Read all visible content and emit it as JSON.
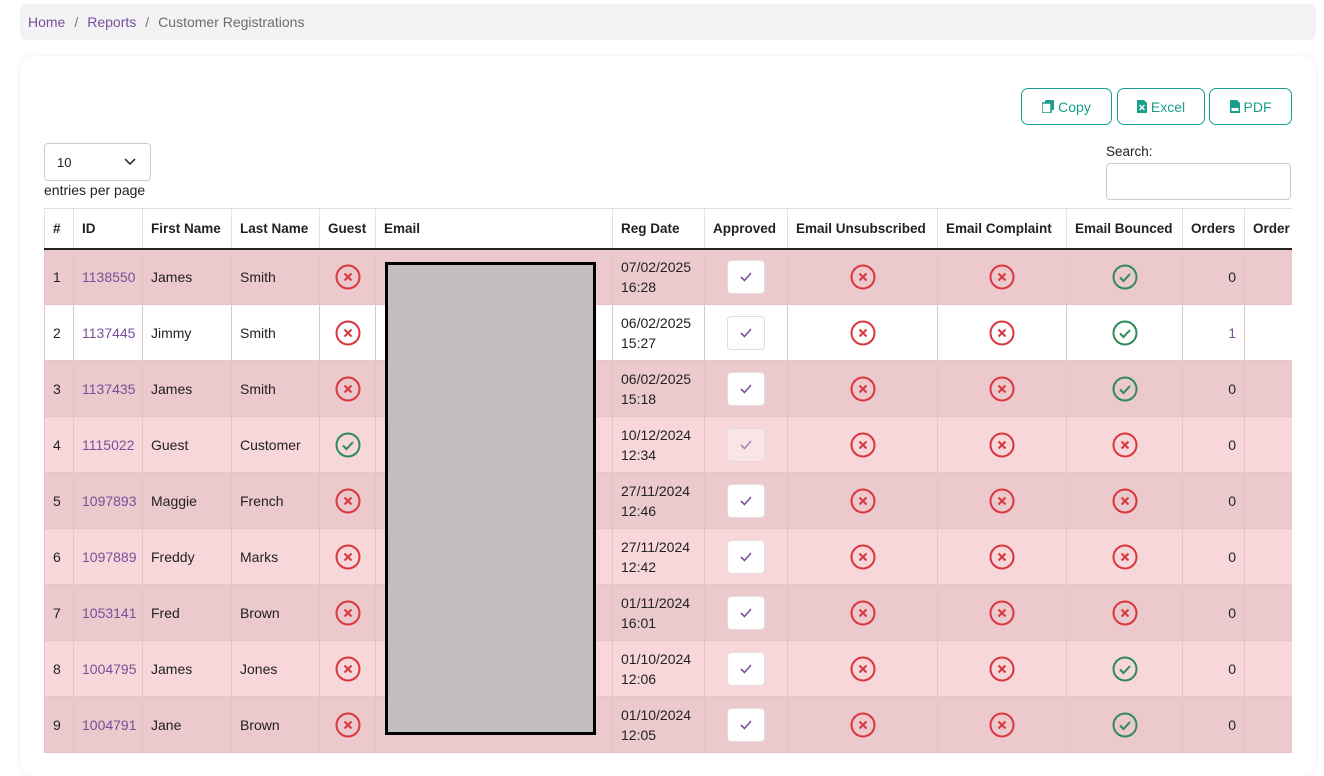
{
  "breadcrumb": [
    "Home",
    "Reports",
    "Customer Registrations"
  ],
  "buttons": [
    "Copy",
    "Excel",
    "PDF"
  ],
  "page_length": "10",
  "entries_label": "entries per page",
  "search_label": "Search:",
  "table": {
    "headers": [
      "#",
      "ID",
      "First Name",
      "Last Name",
      "Guest",
      "Email",
      "Reg Date",
      "Approved",
      "Email Unsubscribed",
      "Email Complaint",
      "Email Bounced",
      "Orders",
      "Order"
    ],
    "rows": [
      {
        "n": 1,
        "id": "1138550",
        "first_name": "James",
        "last_name": "Smith",
        "guest": false,
        "reg_date": "07/02/2025",
        "reg_time": "16:28",
        "approved": true,
        "unsubscribed": false,
        "complaint": false,
        "bounced": true,
        "orders": 0
      },
      {
        "n": 2,
        "id": "1137445",
        "first_name": "Jimmy",
        "last_name": "Smith",
        "guest": false,
        "reg_date": "06/02/2025",
        "reg_time": "15:27",
        "approved": true,
        "unsubscribed": false,
        "complaint": false,
        "bounced": true,
        "orders": 1
      },
      {
        "n": 3,
        "id": "1137435",
        "first_name": "James",
        "last_name": "Smith",
        "guest": false,
        "reg_date": "06/02/2025",
        "reg_time": "15:18",
        "approved": true,
        "unsubscribed": false,
        "complaint": false,
        "bounced": true,
        "orders": 0
      },
      {
        "n": 4,
        "id": "1115022",
        "first_name": "Guest",
        "last_name": "Customer",
        "guest": true,
        "reg_date": "10/12/2024",
        "reg_time": "12:34",
        "approved": true,
        "unsubscribed": false,
        "complaint": false,
        "bounced": false,
        "orders": 0
      },
      {
        "n": 5,
        "id": "1097893",
        "first_name": "Maggie",
        "last_name": "French",
        "guest": false,
        "reg_date": "27/11/2024",
        "reg_time": "12:46",
        "approved": true,
        "unsubscribed": false,
        "complaint": false,
        "bounced": false,
        "orders": 0
      },
      {
        "n": 6,
        "id": "1097889",
        "first_name": "Freddy",
        "last_name": "Marks",
        "guest": false,
        "reg_date": "27/11/2024",
        "reg_time": "12:42",
        "approved": true,
        "unsubscribed": false,
        "complaint": false,
        "bounced": false,
        "orders": 0
      },
      {
        "n": 7,
        "id": "1053141",
        "first_name": "Fred",
        "last_name": "Brown",
        "guest": false,
        "reg_date": "01/11/2024",
        "reg_time": "16:01",
        "approved": true,
        "unsubscribed": false,
        "complaint": false,
        "bounced": false,
        "orders": 0
      },
      {
        "n": 8,
        "id": "1004795",
        "first_name": "James",
        "last_name": "Jones",
        "guest": false,
        "reg_date": "01/10/2024",
        "reg_time": "12:06",
        "approved": true,
        "unsubscribed": false,
        "complaint": false,
        "bounced": true,
        "orders": 0
      },
      {
        "n": 9,
        "id": "1004791",
        "first_name": "Jane",
        "last_name": "Brown",
        "guest": false,
        "reg_date": "01/10/2024",
        "reg_time": "12:05",
        "approved": true,
        "unsubscribed": false,
        "complaint": false,
        "bounced": true,
        "orders": 0
      }
    ]
  }
}
